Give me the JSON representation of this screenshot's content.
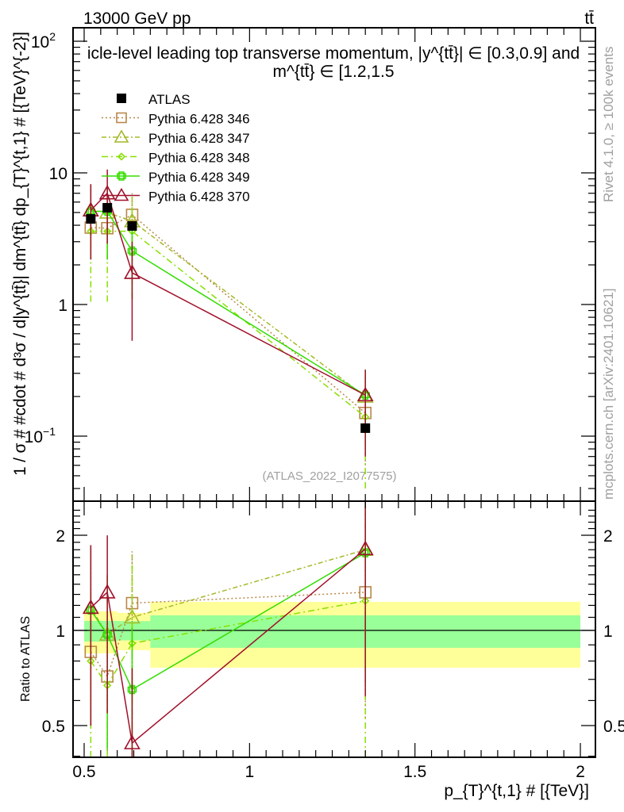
{
  "header": {
    "left": "13000 GeV pp",
    "right": "tt̄"
  },
  "side_text": {
    "rivet": "Rivet 4.1.0, ≥ 100k events",
    "mcplots": "mcplots.cern.ch [arXiv:2401.10621]"
  },
  "watermark": "(ATLAS_2022_I2077575)",
  "chart_data": {
    "type": "scatter",
    "title": "icle-level leading top transverse momentum, |y^{tt̄}| ∈ [0.3,0.9] and m^{tt̄} ∈ [1.2,1.5",
    "ylabel": "1 / σ # #cdot # d³σ / d|y^{tt̄}| dm^{tt̄} dp_{T}^{t,1} # [{TeV}^{-2}]",
    "xlabel": "p_{T}^{t,1} # [{TeV}]",
    "ratio_ylabel": "Ratio to ATLAS",
    "xlim": [
      0.46,
      2.05
    ],
    "ylim": [
      0.032,
      126
    ],
    "yscale": "log",
    "ratio_ylim": [
      0.4,
      2.56
    ],
    "xticks": [
      "0.5",
      "1",
      "1.5",
      "2"
    ],
    "xtick_values": [
      0.5,
      1,
      1.5,
      2
    ],
    "yticks": [
      {
        "base": "10",
        "exp": "2",
        "value": 100
      },
      {
        "base": "10",
        "exp": "",
        "value": 10
      },
      {
        "base": "1",
        "exp": "",
        "value": 1
      },
      {
        "base": "10",
        "exp": "−1",
        "value": 0.1
      }
    ],
    "ratio_yticks": [
      {
        "label": "0.5",
        "value": 0.5
      },
      {
        "label": "1",
        "value": 1
      },
      {
        "label": "2",
        "value": 2
      }
    ],
    "legend_position": "top-left",
    "data": {
      "name": "ATLAS",
      "color": "#000000",
      "x": [
        0.52,
        0.57,
        0.645,
        1.35
      ],
      "y": [
        4.47,
        5.43,
        3.95,
        0.115
      ],
      "bands": [
        {
          "x": [
            0.5,
            0.6
          ],
          "stat": [
            0.922,
            1.072
          ],
          "total": [
            0.846,
            1.149
          ]
        },
        {
          "x": [
            0.6,
            0.7
          ],
          "stat": [
            0.93,
            1.07
          ],
          "total": [
            0.866,
            1.136
          ]
        },
        {
          "x": [
            0.7,
            2.0
          ],
          "stat": [
            0.881,
            1.116
          ],
          "total": [
            0.762,
            1.231
          ]
        }
      ]
    },
    "series": [
      {
        "name": "Pythia 6.428 346",
        "color": "#b8884a",
        "marker": "square",
        "dash": "2,3",
        "y": [
          3.84,
          3.8,
          4.8,
          0.15
        ],
        "err_lo": [
          2.2,
          2.2,
          2.6,
          0.06
        ],
        "err_hi": [
          8.2,
          8.0,
          7.0,
          0.3
        ],
        "ratio": [
          0.855,
          0.715,
          1.22,
          1.32
        ]
      },
      {
        "name": "Pythia 6.428 347",
        "color": "#a6b82a",
        "marker": "triangle",
        "dash": "6,3,2,3",
        "y": [
          5.2,
          5.0,
          4.3,
          0.2
        ],
        "err_lo": [
          2.2,
          2.2,
          2.3,
          0.07
        ],
        "err_hi": [
          8.2,
          7.8,
          6.8,
          0.3
        ],
        "ratio": [
          1.18,
          0.97,
          1.1,
          1.8
        ]
      },
      {
        "name": "Pythia 6.428 348",
        "color": "#88e000",
        "marker": "diamond",
        "dash": "8,4,2,4",
        "y": [
          3.6,
          3.6,
          3.6,
          0.14
        ],
        "err_lo": [
          1.05,
          1.05,
          1.1,
          0.04
        ],
        "err_hi": [
          6.0,
          6.0,
          6.5,
          0.28
        ],
        "ratio": [
          0.8,
          0.67,
          0.91,
          1.24
        ]
      },
      {
        "name": "Pythia 6.428 349",
        "color": "#33dd00",
        "marker": "cross",
        "dash": "",
        "y": [
          5.1,
          5.1,
          2.55,
          0.205
        ],
        "err_lo": [
          2.2,
          2.2,
          1.1,
          0.08
        ],
        "err_hi": [
          8.0,
          7.9,
          4.0,
          0.32
        ],
        "ratio": [
          1.16,
          0.97,
          0.65,
          1.76
        ]
      },
      {
        "name": "Pythia 6.428 370",
        "color": "#a0102a",
        "marker": "triangle",
        "dash": "",
        "y": [
          5.2,
          7.0,
          1.74,
          0.205
        ],
        "err_lo": [
          2.2,
          2.9,
          0.53,
          0.07
        ],
        "err_hi": [
          8.2,
          10.6,
          3.0,
          0.32
        ],
        "ratio": [
          1.18,
          1.32,
          0.44,
          1.81
        ]
      }
    ]
  }
}
